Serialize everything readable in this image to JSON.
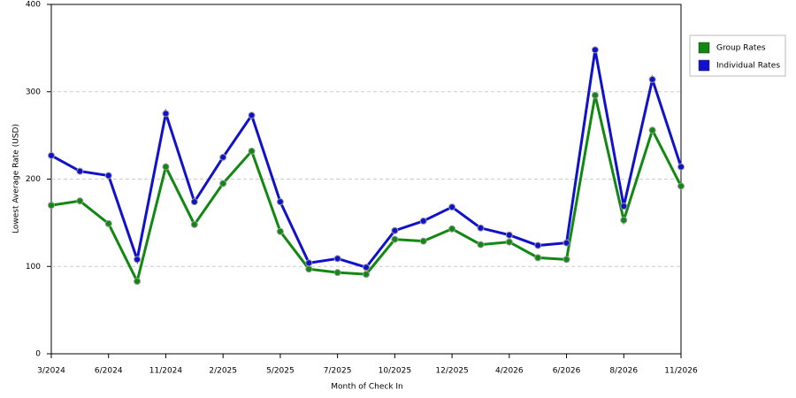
{
  "chart_data": {
    "type": "line",
    "x_label": "Month of Check In",
    "y_label": "Lowest Average Rate (USD)",
    "categories": [
      "3/2024",
      null,
      "6/2024",
      null,
      "11/2024",
      null,
      "2/2025",
      null,
      "5/2025",
      null,
      "7/2025",
      null,
      "10/2025",
      null,
      "12/2025",
      null,
      "4/2026",
      null,
      "6/2026",
      null,
      "8/2026",
      null,
      "11/2026"
    ],
    "series": [
      {
        "name": "Group Rates",
        "color": "#118811",
        "values": [
          170,
          175,
          149,
          83,
          214,
          148,
          195,
          232,
          140,
          97,
          93,
          91,
          131,
          129,
          143,
          125,
          128,
          110,
          108,
          296,
          153,
          256,
          192
        ]
      },
      {
        "name": "Individual Rates",
        "color": "#1111cc",
        "values": [
          227,
          209,
          204,
          108,
          275,
          174,
          225,
          273,
          174,
          104,
          109,
          99,
          141,
          152,
          168,
          144,
          136,
          124,
          127,
          348,
          169,
          314,
          214
        ]
      }
    ],
    "ylim": [
      0,
      400
    ],
    "yticks": [
      0,
      100,
      200,
      300,
      400
    ],
    "grid": true,
    "legend": "right"
  }
}
